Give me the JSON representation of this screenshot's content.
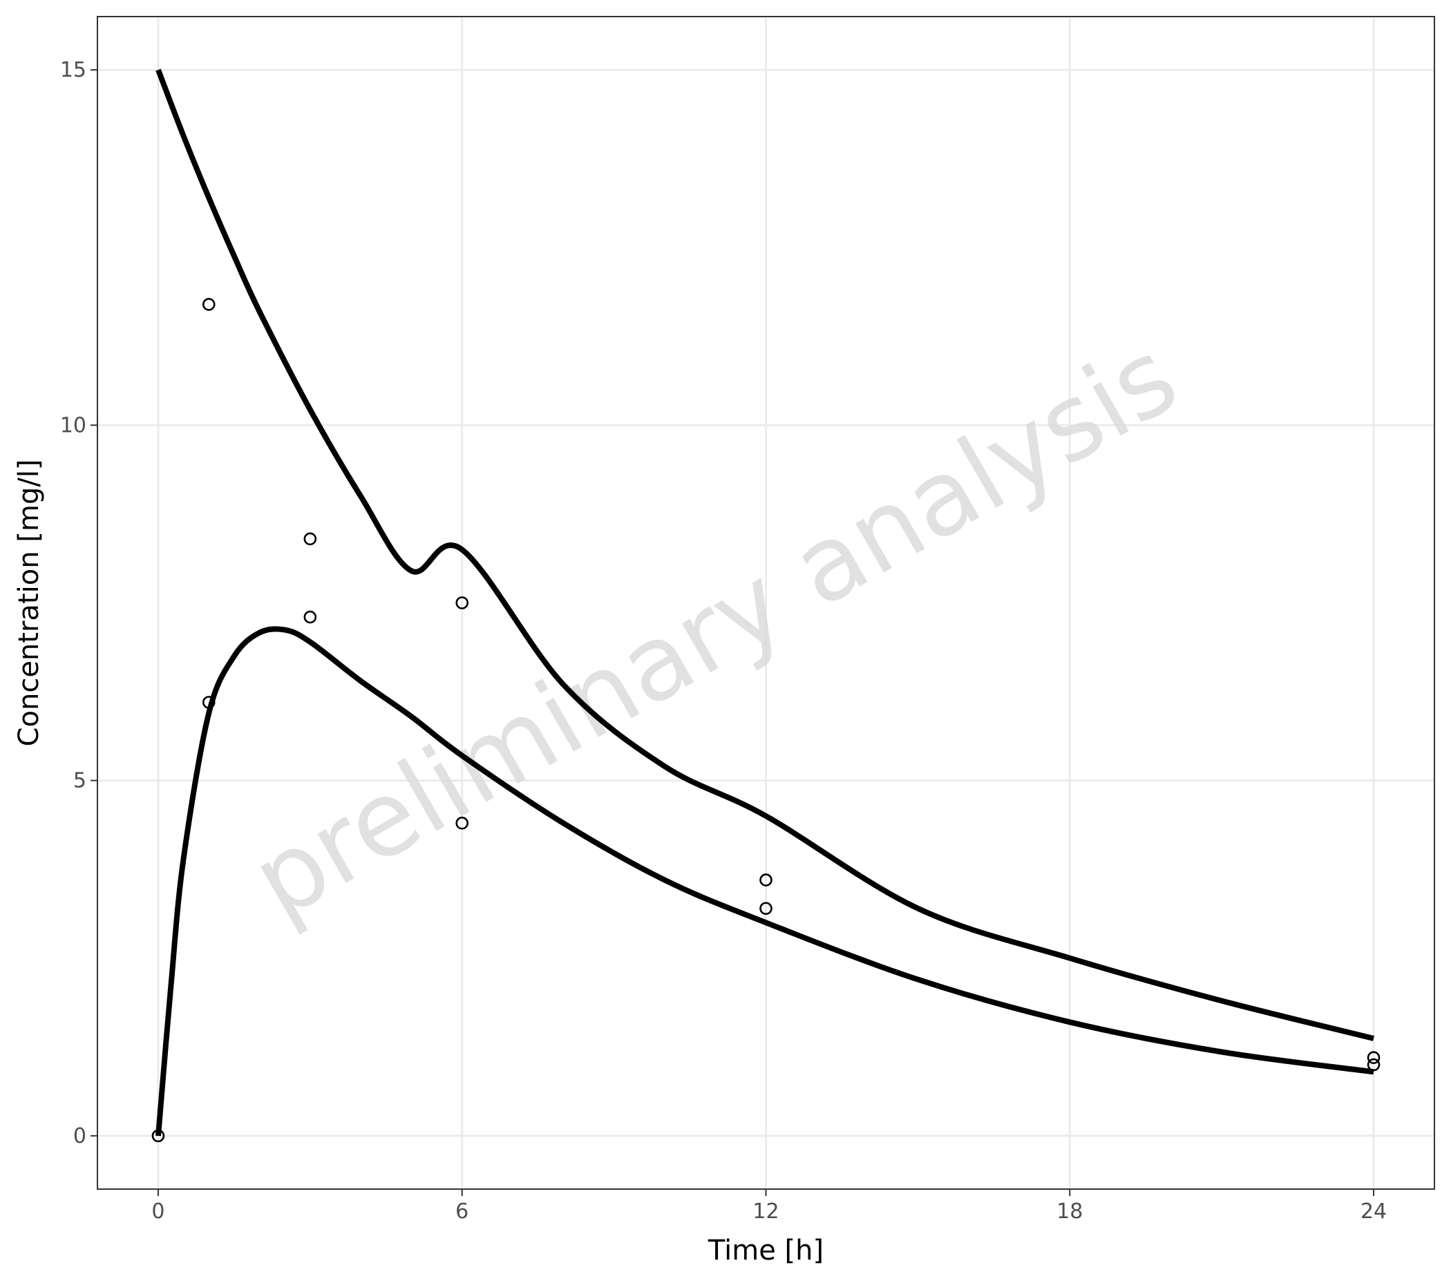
{
  "chart_data": {
    "type": "line",
    "xlabel": "Time [h]",
    "ylabel": "Concentration [mg/l]",
    "xlim": [
      -1.2,
      25.2
    ],
    "ylim": [
      -0.75,
      15.75
    ],
    "x_ticks": [
      0,
      6,
      12,
      18,
      24
    ],
    "y_ticks": [
      0,
      5,
      10,
      15
    ],
    "grid": true,
    "legend": "none",
    "watermark": "preliminary analysis",
    "series": [
      {
        "kind": "line",
        "x": [
          0,
          0.5,
          1,
          1.5,
          2,
          3,
          4,
          5,
          6,
          8,
          10,
          12,
          15,
          18,
          21,
          24
        ],
        "y": [
          15.0,
          14.07,
          13.2,
          12.38,
          11.6,
          10.22,
          9.0,
          7.95,
          8.25,
          6.35,
          5.2,
          4.5,
          3.2,
          2.5,
          1.9,
          1.37
        ]
      },
      {
        "kind": "line",
        "x": [
          0,
          0.25,
          0.5,
          1,
          1.5,
          2,
          2.5,
          3,
          4,
          5,
          6,
          8,
          10,
          12,
          15,
          18,
          21,
          24
        ],
        "y": [
          0,
          2.1,
          3.9,
          5.95,
          6.75,
          7.08,
          7.12,
          6.95,
          6.4,
          5.9,
          5.35,
          4.4,
          3.6,
          3.0,
          2.2,
          1.6,
          1.18,
          0.9
        ]
      },
      {
        "kind": "scatter",
        "x": [
          0,
          1,
          1,
          3,
          3,
          6,
          6,
          12,
          12,
          24,
          24
        ],
        "y": [
          0,
          11.7,
          6.1,
          8.4,
          7.3,
          7.5,
          4.4,
          3.6,
          3.2,
          1.1,
          1.0
        ]
      }
    ]
  }
}
